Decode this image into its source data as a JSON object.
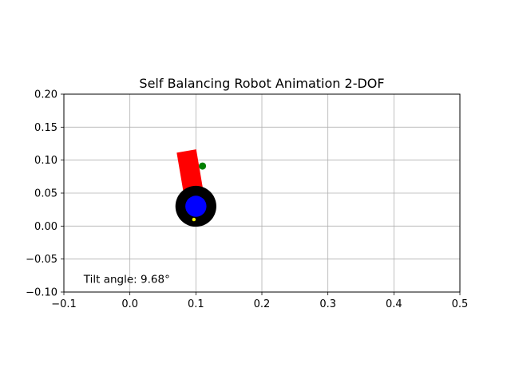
{
  "chart_data": {
    "type": "scatter",
    "title": "Self Balancing Robot Animation 2-DOF",
    "xlabel": "",
    "ylabel": "",
    "xlim": [
      -0.1,
      0.5
    ],
    "ylim": [
      -0.1,
      0.2
    ],
    "grid": true,
    "xticks": [
      -0.1,
      0.0,
      0.1,
      0.2,
      0.3,
      0.4,
      0.5
    ],
    "xtick_labels": [
      "−0.1",
      "0.0",
      "0.1",
      "0.2",
      "0.3",
      "0.4",
      "0.5"
    ],
    "yticks": [
      -0.1,
      -0.05,
      0.0,
      0.05,
      0.1,
      0.15,
      0.2
    ],
    "ytick_labels": [
      "−0.10",
      "−0.05",
      "0.00",
      "0.05",
      "0.10",
      "0.15",
      "0.20"
    ],
    "annotation": {
      "text": "Tilt angle: 9.68°",
      "x": -0.07,
      "y": -0.08
    },
    "robot": {
      "wheel_center": [
        0.1,
        0.03
      ],
      "wheel_outer_radius": 0.031,
      "wheel_inner_radius": 0.016,
      "tilt_deg": 9.68,
      "body_length": 0.085,
      "body_width": 0.03,
      "marker_point": [
        0.11,
        0.091
      ],
      "wheel_marker": [
        0.097,
        0.01
      ],
      "colors": {
        "body": "#ff0000",
        "wheel_outer": "#000000",
        "wheel_inner": "#0000ff",
        "marker": "#008000",
        "wheel_marker": "#ffff00"
      }
    }
  }
}
